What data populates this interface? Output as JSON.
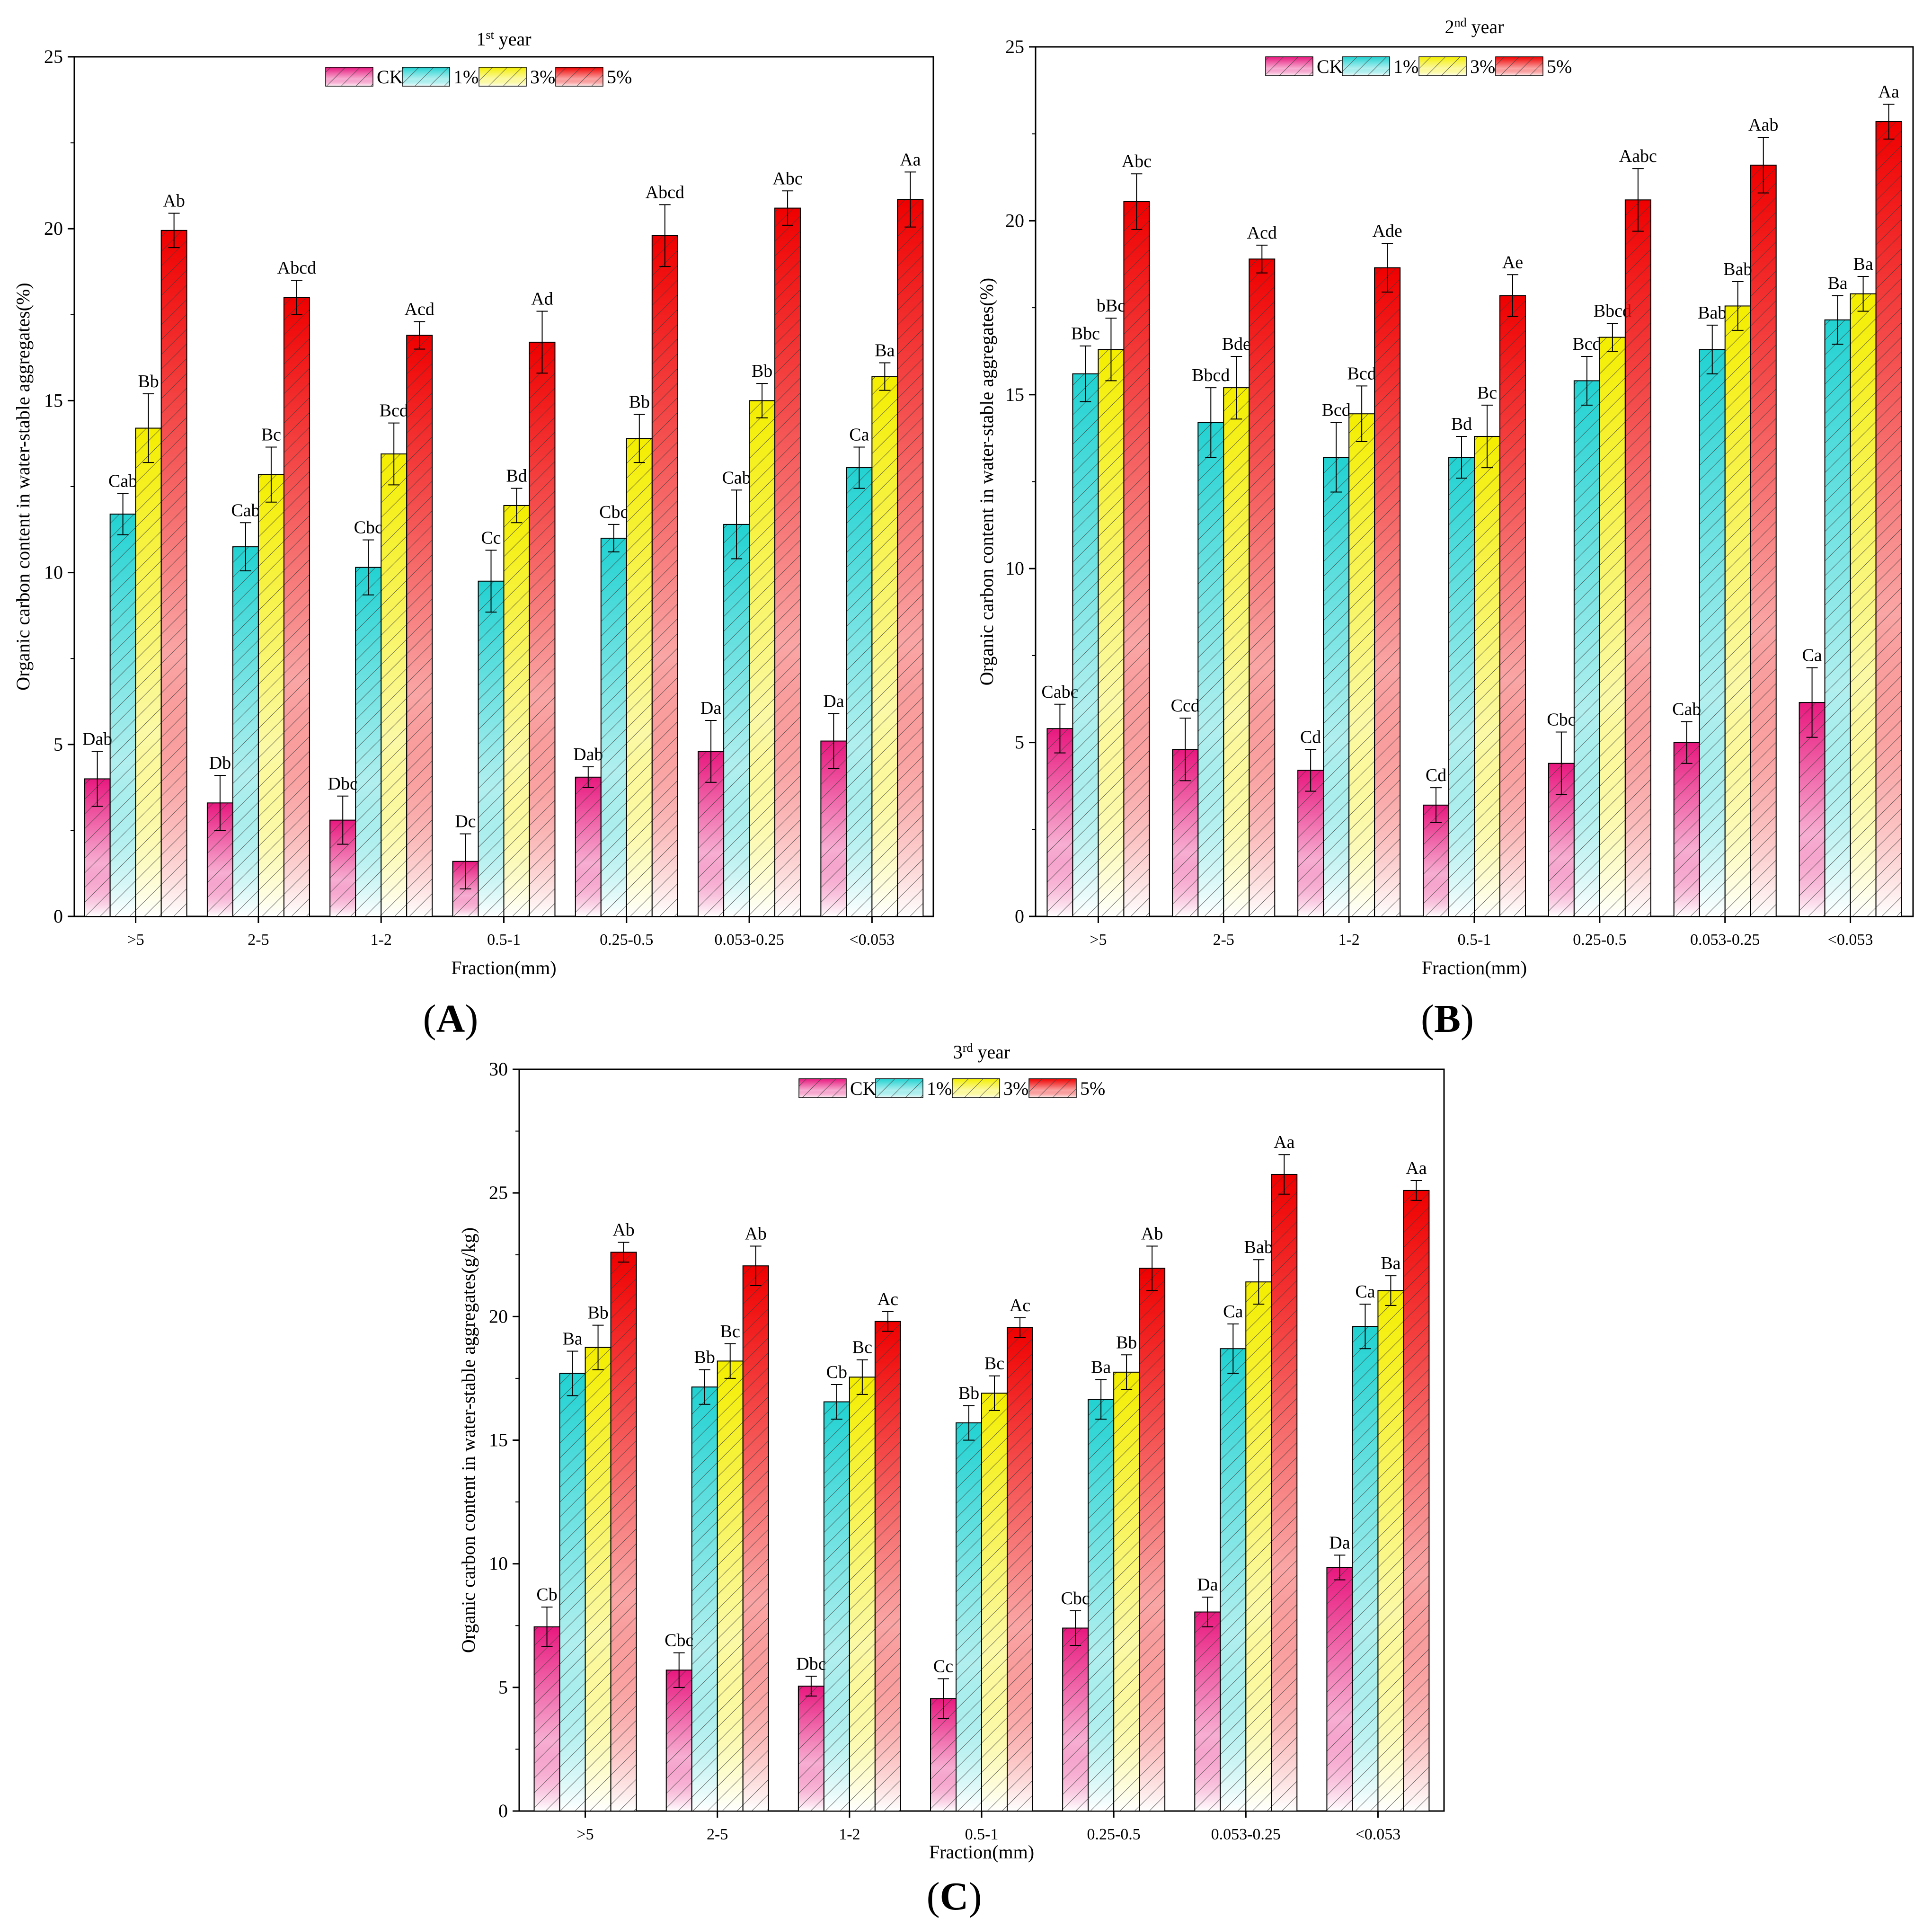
{
  "chart_data": [
    {
      "panel_label": "(A)",
      "type": "bar",
      "title_main": "1",
      "title_sup": "st",
      "title_rest": " year",
      "xlabel": "Fraction(mm)",
      "ylabel": "Organic carbon content in water-stable aggregates(%)",
      "ylim": [
        0,
        25
      ],
      "yticks": [
        0,
        5,
        10,
        15,
        20,
        25
      ],
      "categories": [
        ">5",
        "2-5",
        "1-2",
        "0.5-1",
        "0.25-0.5",
        "0.053-0.25",
        "<0.053"
      ],
      "legend": [
        "CK",
        "1%",
        "3%",
        "5%"
      ],
      "series": [
        {
          "name": "CK",
          "values": [
            4.0,
            3.3,
            2.8,
            1.6,
            4.05,
            4.8,
            5.1
          ],
          "errors": [
            0.8,
            0.8,
            0.7,
            0.8,
            0.3,
            0.9,
            0.8
          ],
          "labels": [
            "Dab",
            "Db",
            "Dbc",
            "Dc",
            "Dab",
            "Da",
            "Da"
          ]
        },
        {
          "name": "1%",
          "values": [
            11.7,
            10.75,
            10.15,
            9.75,
            11.0,
            11.4,
            13.05
          ],
          "errors": [
            0.6,
            0.7,
            0.8,
            0.9,
            0.4,
            1.0,
            0.6
          ],
          "labels": [
            "Cab",
            "Cab",
            "Cbc",
            "Cc",
            "Cbc",
            "Cab",
            "Ca"
          ]
        },
        {
          "name": "3%",
          "values": [
            14.2,
            12.85,
            13.45,
            11.95,
            13.9,
            15.0,
            15.7
          ],
          "errors": [
            1.0,
            0.8,
            0.9,
            0.5,
            0.7,
            0.5,
            0.4
          ],
          "labels": [
            "Bb",
            "Bc",
            "Bcd",
            "Bd",
            "Bb",
            "Bb",
            "Ba"
          ]
        },
        {
          "name": "5%",
          "values": [
            19.95,
            18.0,
            16.9,
            16.7,
            19.8,
            20.6,
            20.85
          ],
          "errors": [
            0.5,
            0.5,
            0.4,
            0.9,
            0.9,
            0.5,
            0.8
          ],
          "labels": [
            "Ab",
            "Abcd",
            "Acd",
            "Ad",
            "Abcd",
            "Abc",
            "Aa"
          ]
        }
      ]
    },
    {
      "panel_label": "(B)",
      "type": "bar",
      "title_main": "2",
      "title_sup": "nd",
      "title_rest": " year",
      "xlabel": "Fraction(mm)",
      "ylabel": "Organic carbon content in water-stable aggregates(%)",
      "ylim": [
        0,
        25
      ],
      "yticks": [
        0,
        5,
        10,
        15,
        20,
        25
      ],
      "categories": [
        ">5",
        "2-5",
        "1-2",
        "0.5-1",
        "0.25-0.5",
        "0.053-0.25",
        "<0.053"
      ],
      "legend": [
        "CK",
        "1%",
        "3%",
        "5%"
      ],
      "series": [
        {
          "name": "CK",
          "values": [
            5.4,
            4.8,
            4.2,
            3.2,
            4.4,
            5.0,
            6.15
          ],
          "errors": [
            0.7,
            0.9,
            0.6,
            0.5,
            0.9,
            0.6,
            1.0
          ],
          "labels": [
            "Cabc",
            "Ccd",
            "Cd",
            "Cd",
            "Cbc",
            "Cab",
            "Ca"
          ]
        },
        {
          "name": "1%",
          "values": [
            15.6,
            14.2,
            13.2,
            13.2,
            15.4,
            16.3,
            17.15
          ],
          "errors": [
            0.8,
            1.0,
            1.0,
            0.6,
            0.7,
            0.7,
            0.7
          ],
          "labels": [
            "Bbc",
            "Bbcd",
            "Bcd",
            "Bd",
            "Bcd",
            "Bab",
            "Ba"
          ]
        },
        {
          "name": "3%",
          "values": [
            16.3,
            15.2,
            14.45,
            13.8,
            16.65,
            17.55,
            17.9
          ],
          "errors": [
            0.9,
            0.9,
            0.8,
            0.9,
            0.4,
            0.7,
            0.5
          ],
          "labels": [
            "bBc",
            "Bde",
            "Bcd",
            "Bc",
            "Bbcd",
            "Bab",
            "Ba"
          ]
        },
        {
          "name": "5%",
          "values": [
            20.55,
            18.9,
            18.65,
            17.85,
            20.6,
            21.6,
            22.85
          ],
          "errors": [
            0.8,
            0.4,
            0.7,
            0.6,
            0.9,
            0.8,
            0.5
          ],
          "labels": [
            "Abc",
            "Acd",
            "Ade",
            "Ae",
            "Aabc",
            "Aab",
            "Aa"
          ]
        }
      ]
    },
    {
      "panel_label": "(C)",
      "type": "bar",
      "title_main": "3",
      "title_sup": "rd",
      "title_rest": " year",
      "xlabel": "Fraction(mm)",
      "ylabel": "Organic carbon content in water-stable aggregates(g/kg)",
      "ylim": [
        0,
        30
      ],
      "yticks": [
        0,
        5,
        10,
        15,
        20,
        25,
        30
      ],
      "categories": [
        ">5",
        "2-5",
        "1-2",
        "0.5-1",
        "0.25-0.5",
        "0.053-0.25",
        "<0.053"
      ],
      "legend": [
        "CK",
        "1%",
        "3%",
        "5%"
      ],
      "series": [
        {
          "name": "CK",
          "values": [
            7.45,
            5.7,
            5.05,
            4.55,
            7.4,
            8.05,
            9.85
          ],
          "errors": [
            0.8,
            0.7,
            0.4,
            0.8,
            0.7,
            0.6,
            0.5
          ],
          "labels": [
            "Cb",
            "Cbc",
            "Dbc",
            "Cc",
            "Cbc",
            "Da",
            "Da"
          ]
        },
        {
          "name": "1%",
          "values": [
            17.7,
            17.15,
            16.55,
            15.7,
            16.65,
            18.7,
            19.6
          ],
          "errors": [
            0.9,
            0.7,
            0.7,
            0.7,
            0.8,
            1.0,
            0.9
          ],
          "labels": [
            "Ba",
            "Bb",
            "Cb",
            "Bb",
            "Ba",
            "Ca",
            "Ca"
          ]
        },
        {
          "name": "3%",
          "values": [
            18.75,
            18.2,
            17.55,
            16.9,
            17.75,
            21.4,
            21.05
          ],
          "errors": [
            0.9,
            0.7,
            0.7,
            0.7,
            0.7,
            0.9,
            0.6
          ],
          "labels": [
            "Bb",
            "Bc",
            "Bc",
            "Bc",
            "Bb",
            "Bab",
            "Ba"
          ]
        },
        {
          "name": "5%",
          "values": [
            22.6,
            22.05,
            19.8,
            19.55,
            21.95,
            25.75,
            25.1
          ],
          "errors": [
            0.4,
            0.8,
            0.4,
            0.4,
            0.9,
            0.8,
            0.4
          ],
          "labels": [
            "Ab",
            "Ab",
            "Ac",
            "Ac",
            "Ab",
            "Aa",
            "Aa"
          ]
        }
      ]
    }
  ],
  "series_colors": {
    "CK": [
      "#e8187e",
      "#ffffff"
    ],
    "1%": [
      "#22d2d2",
      "#ffffff"
    ],
    "3%": [
      "#f4ee00",
      "#ffffff"
    ],
    "5%": [
      "#f00000",
      "#ffffff"
    ]
  }
}
